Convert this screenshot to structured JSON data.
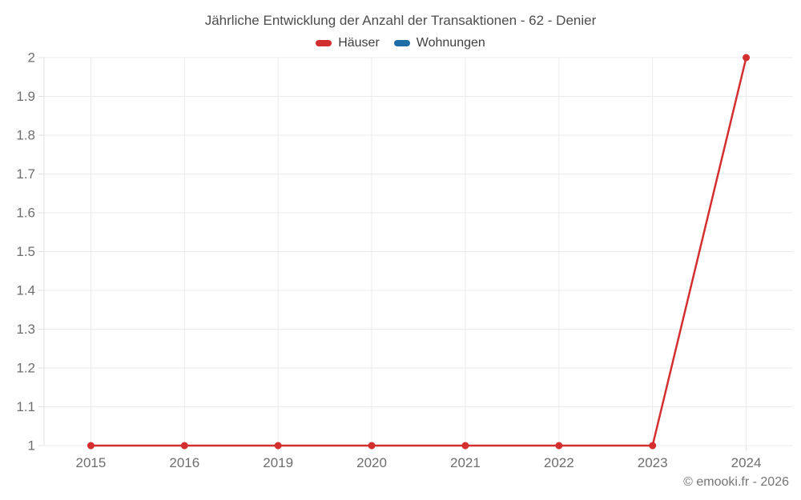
{
  "title": "Jährliche Entwicklung der Anzahl der Transaktionen - 62 - Denier",
  "footer": {
    "copyright": "© emooki.fr - 2026"
  },
  "colors": {
    "grid": "#ebebeb",
    "axis": "#e0e0e0",
    "tick_label": "#6e6e6e",
    "title_text": "#4d4d4d",
    "series_hauser": "#d32f2f",
    "series_wohnungen": "#1c6ea4"
  },
  "chart_data": {
    "type": "line",
    "title": "Jährliche Entwicklung der Anzahl der Transaktionen - 62 - Denier",
    "categories": [
      "2015",
      "2016",
      "2019",
      "2020",
      "2021",
      "2022",
      "2023",
      "2024"
    ],
    "series": [
      {
        "name": "Häuser",
        "color": "#d32f2f",
        "values": [
          1,
          1,
          1,
          1,
          1,
          1,
          1,
          2
        ]
      },
      {
        "name": "Wohnungen",
        "color": "#1c6ea4",
        "values": []
      }
    ],
    "xlabel": "",
    "ylabel": "",
    "ylim": [
      1,
      2
    ],
    "ytick_step": 0.1,
    "ytick_labels": [
      "1",
      "1.1",
      "1.2",
      "1.3",
      "1.4",
      "1.5",
      "1.6",
      "1.7",
      "1.8",
      "1.9",
      "2"
    ],
    "grid": true,
    "legend_position": "top"
  }
}
